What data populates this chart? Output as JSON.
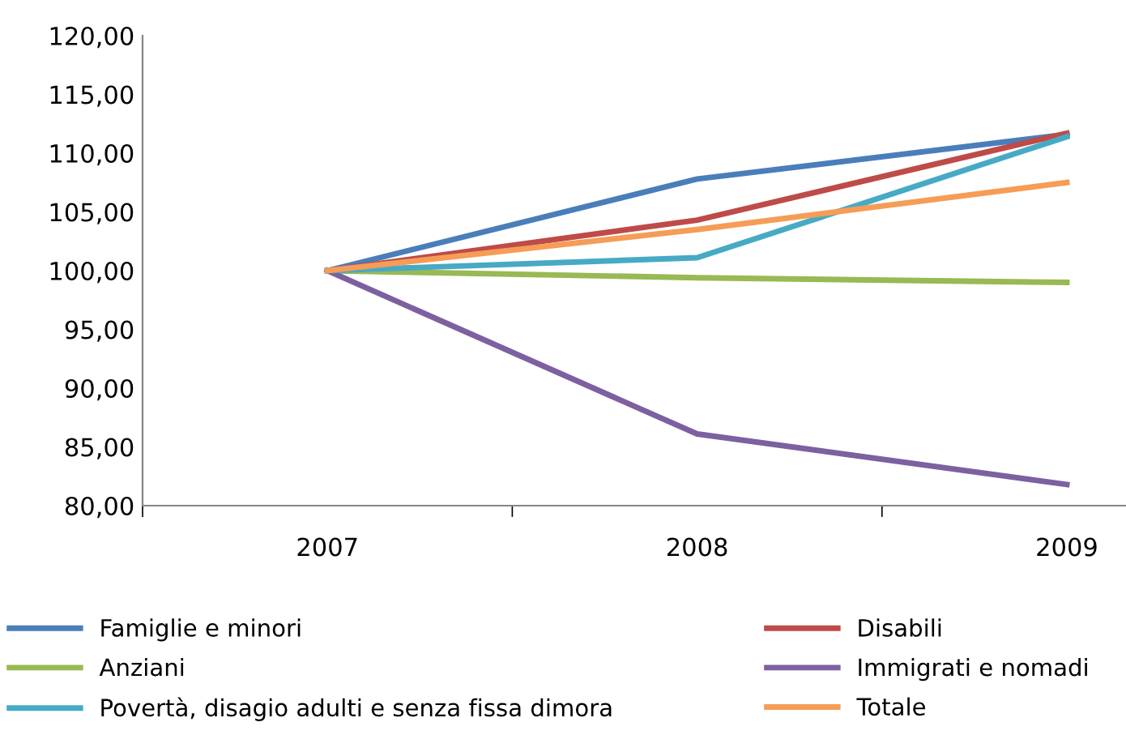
{
  "chart_data": {
    "type": "line",
    "categories": [
      "2007",
      "2008",
      "2009"
    ],
    "ylim": [
      80,
      120
    ],
    "yticks": [
      {
        "value": 80,
        "label": "80,00"
      },
      {
        "value": 85,
        "label": "85,00"
      },
      {
        "value": 90,
        "label": "90,00"
      },
      {
        "value": 95,
        "label": "95,00"
      },
      {
        "value": 100,
        "label": "100,00"
      },
      {
        "value": 105,
        "label": "105,00"
      },
      {
        "value": 110,
        "label": "110,00"
      },
      {
        "value": 115,
        "label": "115,00"
      },
      {
        "value": 120,
        "label": "120,00"
      }
    ],
    "grid": false,
    "legend": "bottom",
    "marker": "none",
    "line_style": "solid",
    "series": [
      {
        "name": "Famiglie e minori",
        "color": "#4a7ebb",
        "values": [
          100,
          107.8,
          111.6
        ]
      },
      {
        "name": "Disabili",
        "color": "#be4b48",
        "values": [
          100,
          104.3,
          111.7
        ]
      },
      {
        "name": "Anziani",
        "color": "#98b954",
        "values": [
          100,
          99.4,
          99.0
        ]
      },
      {
        "name": "Immigrati e nomadi",
        "color": "#7d60a0",
        "values": [
          100,
          86.1,
          81.8
        ]
      },
      {
        "name": "Povertà, disagio adulti e senza fissa dimora",
        "color": "#46aac5",
        "values": [
          100,
          101.1,
          111.4
        ]
      },
      {
        "name": "Totale",
        "color": "#f59d56",
        "values": [
          100,
          103.5,
          107.5
        ]
      }
    ]
  }
}
